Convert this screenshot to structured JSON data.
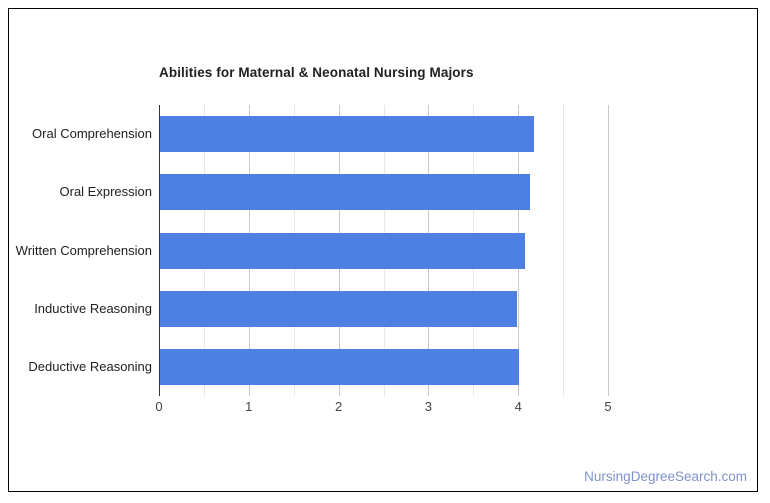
{
  "page": {
    "background": "#ffffff",
    "frame_border_color": "#000000"
  },
  "chart_data": {
    "type": "bar",
    "orientation": "horizontal",
    "title": "Abilities for Maternal & Neonatal Nursing Majors",
    "categories": [
      "Oral Comprehension",
      "Oral Expression",
      "Written Comprehension",
      "Inductive Reasoning",
      "Deductive Reasoning"
    ],
    "values": [
      4.17,
      4.12,
      4.07,
      3.98,
      4.0
    ],
    "xlabel": "",
    "ylabel": "",
    "xlim": [
      0,
      5
    ],
    "x_ticks": [
      0,
      1,
      2,
      3,
      4,
      5
    ],
    "x_tick_labels": [
      "0",
      "1",
      "2",
      "3",
      "4",
      "5"
    ],
    "x_minor_step": 0.5,
    "grid": true,
    "legend": "none",
    "bar_color": "#4d80e2",
    "title_color": "#212121",
    "category_label_color": "#212121",
    "tick_label_color": "#444444",
    "gridline_color": "#c9c9c9",
    "minor_gridline_color": "#e8e8e8",
    "baseline_color": "#333333"
  },
  "footer": {
    "watermark": "NursingDegreeSearch.com",
    "color": "#7d92c9"
  }
}
